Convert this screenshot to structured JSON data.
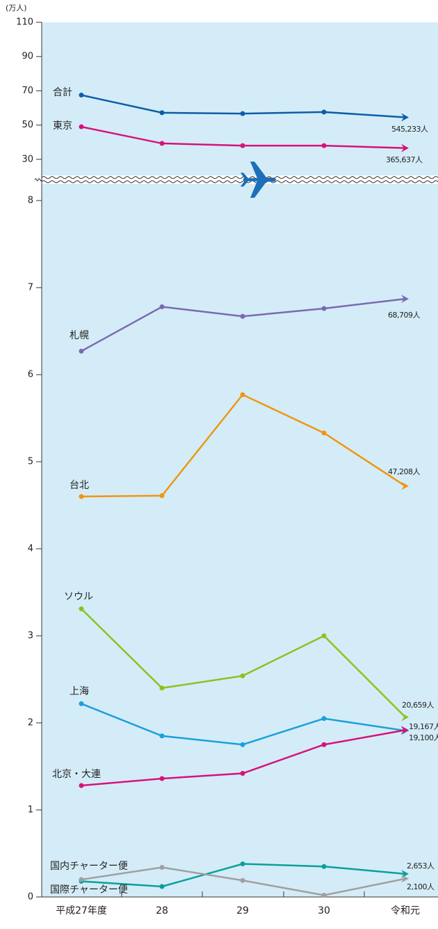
{
  "chart_data": [
    {
      "type": "line",
      "ylabel": "(万人)",
      "ylim": [
        20,
        110
      ],
      "yticks": [
        30,
        50,
        70,
        90,
        110
      ],
      "series": [
        {
          "name": "合計",
          "color": "#0b5ea8",
          "values": [
            67.5,
            57.2,
            56.7,
            57.6,
            54.5233
          ],
          "value_labels": [
            null,
            null,
            null,
            null,
            "545,233人"
          ]
        },
        {
          "name": "東京",
          "color": "#d6137a",
          "values": [
            49,
            39.3,
            38,
            38,
            36.5637
          ],
          "value_labels": [
            null,
            null,
            null,
            null,
            "365,637人"
          ]
        }
      ]
    },
    {
      "type": "line",
      "categories": [
        "平成27年度",
        "28",
        "29",
        "30",
        "令和元"
      ],
      "ylim": [
        0,
        8.2
      ],
      "yticks": [
        0,
        1,
        2,
        3,
        4,
        5,
        6,
        7,
        8
      ],
      "series": [
        {
          "name": "札幌",
          "color": "#7a6ab0",
          "values": [
            6.27,
            6.78,
            6.67,
            6.76,
            6.8709
          ],
          "value_labels": [
            null,
            null,
            null,
            null,
            "68,709人"
          ]
        },
        {
          "name": "台北",
          "color": "#f0960e",
          "values": [
            4.6,
            4.61,
            5.77,
            5.33,
            4.7208
          ],
          "value_labels": [
            null,
            null,
            null,
            null,
            "47,208人"
          ]
        },
        {
          "name": "ソウル",
          "color": "#8cc21e",
          "values": [
            3.31,
            2.4,
            2.54,
            3.0,
            2.0659
          ],
          "value_labels": [
            null,
            null,
            null,
            null,
            "20,659人"
          ]
        },
        {
          "name": "上海",
          "color": "#1aa0dc",
          "values": [
            2.22,
            1.85,
            1.75,
            2.05,
            1.91
          ],
          "value_labels": [
            null,
            null,
            null,
            null,
            "19,100人"
          ]
        },
        {
          "name": "北京・大連",
          "color": "#d6137a",
          "values": [
            1.28,
            1.36,
            1.42,
            1.75,
            1.9167
          ],
          "value_labels": [
            null,
            null,
            null,
            null,
            "19,167人"
          ]
        },
        {
          "name": "国内チャーター便",
          "color": "#0aa09a",
          "values": [
            0.18,
            0.12,
            0.38,
            0.35,
            0.2653
          ],
          "value_labels": [
            null,
            null,
            null,
            null,
            "2,653人"
          ]
        },
        {
          "name": "国際チャーター便",
          "color": "#a0a0a0",
          "values": [
            0.2,
            0.34,
            0.19,
            0.02,
            0.21
          ],
          "value_labels": [
            null,
            null,
            null,
            null,
            "2,100人"
          ]
        }
      ]
    }
  ]
}
